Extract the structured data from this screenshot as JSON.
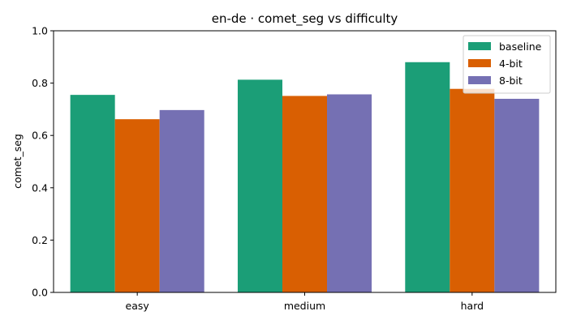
{
  "chart_data": {
    "type": "bar",
    "title": "en-de · comet_seg vs difficulty",
    "xlabel": "",
    "ylabel": "comet_seg",
    "categories": [
      "easy",
      "medium",
      "hard"
    ],
    "ylim": [
      0,
      1.0
    ],
    "yticks": [
      "0.0",
      "0.2",
      "0.4",
      "0.6",
      "0.8",
      "1.0"
    ],
    "grid": false,
    "legend_position": "top-right",
    "series": [
      {
        "name": "baseline",
        "color": "#1b9e77",
        "values": [
          0.755,
          0.813,
          0.88
        ]
      },
      {
        "name": "4-bit",
        "color": "#d95f02",
        "values": [
          0.662,
          0.751,
          0.778
        ]
      },
      {
        "name": "8-bit",
        "color": "#7570b3",
        "values": [
          0.697,
          0.757,
          0.74
        ]
      }
    ]
  }
}
